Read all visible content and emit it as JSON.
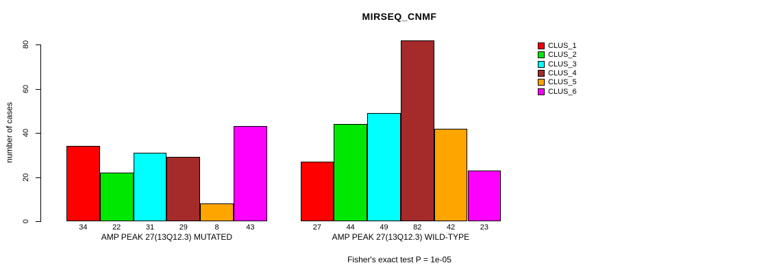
{
  "title": "MIRSEQ_CNMF",
  "chart_data": {
    "type": "bar",
    "title": "MIRSEQ_CNMF",
    "xlabel": "",
    "ylabel": "number of cases",
    "ylim": [
      0,
      80
    ],
    "yticks": [
      0,
      20,
      40,
      60,
      80
    ],
    "grid": false,
    "legend_position": "right",
    "annotation": "Fisher's exact test P = 1e-05",
    "bar_value_labels_shown": true,
    "series": [
      {
        "name": "CLUS_1",
        "color": "#FF0000"
      },
      {
        "name": "CLUS_2",
        "color": "#00E800"
      },
      {
        "name": "CLUS_3",
        "color": "#00FFFF"
      },
      {
        "name": "CLUS_4",
        "color": "#A52A2A"
      },
      {
        "name": "CLUS_5",
        "color": "#FFA500"
      },
      {
        "name": "CLUS_6",
        "color": "#FF00FF"
      }
    ],
    "groups": [
      {
        "label": "AMP PEAK 27(13Q12.3) MUTATED",
        "values": [
          34,
          22,
          31,
          29,
          8,
          43
        ]
      },
      {
        "label": "AMP PEAK 27(13Q12.3) WILD-TYPE",
        "values": [
          27,
          44,
          49,
          82,
          42,
          23
        ]
      }
    ]
  }
}
